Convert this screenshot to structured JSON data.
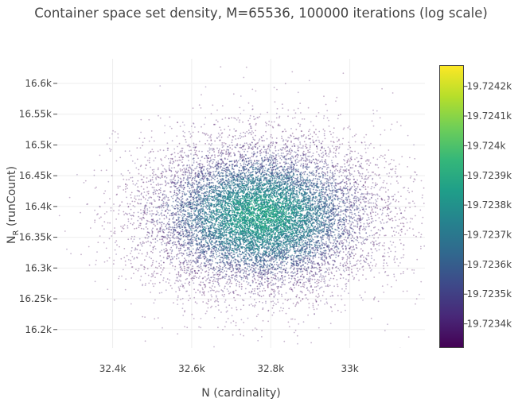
{
  "chart_data": {
    "type": "scatter",
    "title": "Container space set density, M=65536, 100000 iterations (log scale)",
    "xlabel": "N (cardinality)",
    "ylabel": {
      "base": "N",
      "subscript": "R",
      "suffix": " (runCount)"
    },
    "xlim": [
      32260,
      33190
    ],
    "ylim": [
      16170,
      16640
    ],
    "x_ticks": [
      {
        "value": 32400,
        "label": "32.4k"
      },
      {
        "value": 32600,
        "label": "32.6k"
      },
      {
        "value": 32800,
        "label": "32.8k"
      },
      {
        "value": 33000,
        "label": "33k"
      }
    ],
    "y_ticks": [
      {
        "value": 16200,
        "label": "16.2k"
      },
      {
        "value": 16250,
        "label": "16.25k"
      },
      {
        "value": 16300,
        "label": "16.3k"
      },
      {
        "value": 16350,
        "label": "16.35k"
      },
      {
        "value": 16400,
        "label": "16.4k"
      },
      {
        "value": 16450,
        "label": "16.45k"
      },
      {
        "value": 16500,
        "label": "16.5k"
      },
      {
        "value": 16550,
        "label": "16.55k"
      },
      {
        "value": 16600,
        "label": "16.6k"
      }
    ],
    "grid": true,
    "distribution": {
      "center_x": 32775,
      "center_y": 16385,
      "spread_x": 150,
      "spread_y": 62,
      "sample_points": 12000
    },
    "colorscale": {
      "name": "Viridis",
      "min": 19.72332,
      "max": 19.72427,
      "stops": [
        "#440154",
        "#482878",
        "#3e4989",
        "#31688e",
        "#26828e",
        "#1f9e89",
        "#35b779",
        "#6ece58",
        "#b5de2b",
        "#fde725"
      ],
      "ticks": [
        {
          "value": 19.7234,
          "label": "19.7234k"
        },
        {
          "value": 19.7235,
          "label": "19.7235k"
        },
        {
          "value": 19.7236,
          "label": "19.7236k"
        },
        {
          "value": 19.7237,
          "label": "19.7237k"
        },
        {
          "value": 19.7238,
          "label": "19.7238k"
        },
        {
          "value": 19.7239,
          "label": "19.7239k"
        },
        {
          "value": 19.724,
          "label": "19.724k"
        },
        {
          "value": 19.7241,
          "label": "19.7241k"
        },
        {
          "value": 19.7242,
          "label": "19.7242k"
        }
      ]
    }
  }
}
